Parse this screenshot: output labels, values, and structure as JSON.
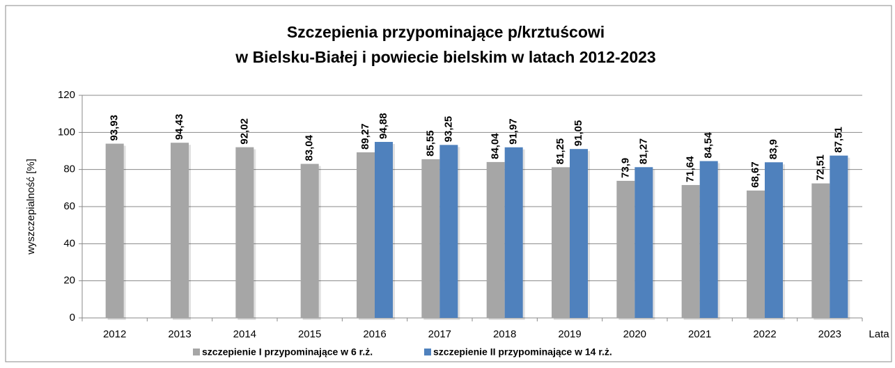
{
  "chart_data": {
    "type": "bar",
    "title": [
      "Szczepienia przypominające p/krztuścowi",
      "w Bielsku-Białej i powiecie bielskim w latach 2012-2023"
    ],
    "y_label": "wyszczepialność [%]",
    "x_label": "Lata",
    "categories": [
      "2012",
      "2013",
      "2014",
      "2015",
      "2016",
      "2017",
      "2018",
      "2019",
      "2020",
      "2021",
      "2022",
      "2023"
    ],
    "series": [
      {
        "name": "szczepienie I przypominające w 6 r.ż.",
        "color": "#a6a6a6",
        "values": [
          93.93,
          94.43,
          92.02,
          83.04,
          89.27,
          85.55,
          84.04,
          81.25,
          73.9,
          71.64,
          68.67,
          72.51
        ],
        "value_labels": [
          "93,93",
          "94,43",
          "92,02",
          "83,04",
          "89,27",
          "85,55",
          "84,04",
          "81,25",
          "73,9",
          "71,64",
          "68,67",
          "72,51"
        ]
      },
      {
        "name": "szczepienie II przypominające w 14 r.ż.",
        "color": "#4f81bd",
        "values": [
          null,
          null,
          null,
          null,
          94.88,
          93.25,
          91.97,
          91.05,
          81.27,
          84.54,
          83.9,
          87.51
        ],
        "value_labels": [
          null,
          null,
          null,
          null,
          "94,88",
          "93,25",
          "91,97",
          "91,05",
          "81,27",
          "84,54",
          "83,9",
          "87,51"
        ]
      }
    ],
    "ylim": [
      0,
      120
    ],
    "yticks": [
      0,
      20,
      40,
      60,
      80,
      100,
      120
    ],
    "grid": true,
    "legend": "bottom"
  }
}
